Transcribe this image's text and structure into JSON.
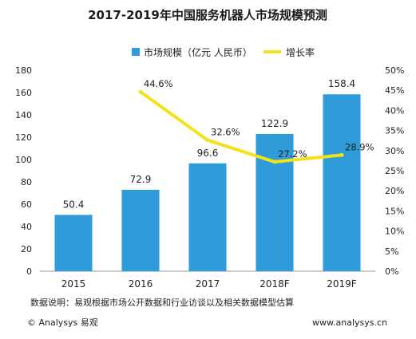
{
  "chart_data": {
    "type": "bar",
    "title": "2017-2019年中国服务机器人市场规模预测",
    "categories": [
      "2015",
      "2016",
      "2017",
      "2018F",
      "2019F"
    ],
    "series": [
      {
        "name": "市场规模（亿元 人民币）",
        "type": "bar",
        "axis": "left",
        "values": [
          50.4,
          72.9,
          96.6,
          122.9,
          158.4
        ],
        "labels": [
          "50.4",
          "72.9",
          "96.6",
          "122.9",
          "158.4"
        ],
        "color": "#2f9bd9"
      },
      {
        "name": "增长率",
        "type": "line",
        "axis": "right",
        "values": [
          null,
          44.6,
          32.6,
          27.2,
          28.9
        ],
        "labels": [
          "",
          "44.6%",
          "32.6%",
          "27.2%",
          "28.9%"
        ],
        "color": "#f2e21d"
      }
    ],
    "y_left": {
      "min": 0,
      "max": 180,
      "step": 20,
      "ticks": [
        "0",
        "20",
        "40",
        "60",
        "80",
        "100",
        "120",
        "140",
        "160",
        "180"
      ]
    },
    "y_right": {
      "min": 0,
      "max": 50,
      "step": 5,
      "ticks": [
        "0%",
        "5%",
        "10%",
        "15%",
        "20%",
        "25%",
        "30%",
        "35%",
        "40%",
        "45%",
        "50%"
      ]
    },
    "grid": false,
    "legend_position": "top-center"
  },
  "note": "数据说明：易观根据市场公开数据和行业访谈以及相关数据模型估算",
  "footer": {
    "left": "© Analysys 易观",
    "right": "www.analysys.cn"
  }
}
